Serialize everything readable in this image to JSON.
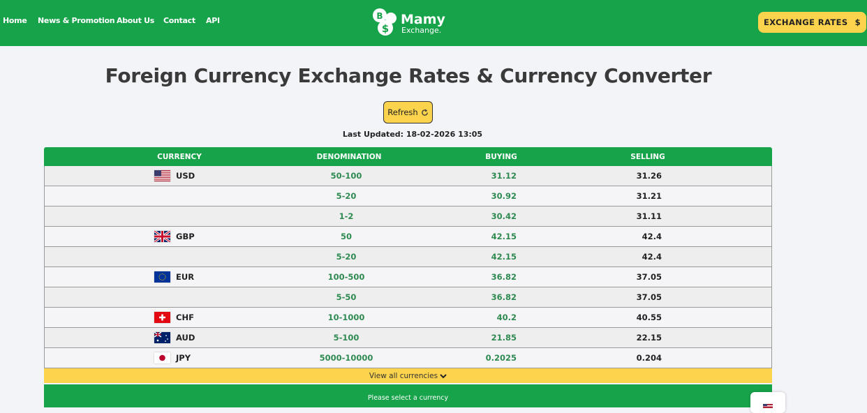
{
  "nav": {
    "items": [
      "Home",
      "News & Promotion",
      "About Us",
      "Contact",
      "API"
    ]
  },
  "logo": {
    "coin_1": "B",
    "coin_2": "$",
    "name": "Mamy",
    "tagline": "Exchange."
  },
  "header_button": {
    "label": "EXCHANGE RATES",
    "icon": "$"
  },
  "title": "Foreign Currency Exchange Rates & Currency Converter",
  "refresh": "Refresh",
  "last_updated": "Last Updated: 18-02-2026 13:05",
  "table": {
    "headers": [
      "CURRENCY",
      "DENOMINATION",
      "BUYING",
      "SELLING"
    ],
    "rows": [
      [
        "USD",
        "50-100",
        "31.12",
        "31.26"
      ],
      [
        null,
        "5-20",
        "30.92",
        "31.21"
      ],
      [
        null,
        "1-2",
        "30.42",
        "31.11"
      ],
      [
        "GBP",
        "50",
        "42.15",
        "42.4"
      ],
      [
        null,
        "5-20",
        "42.15",
        "42.4"
      ],
      [
        "EUR",
        "100-500",
        "36.82",
        "37.05"
      ],
      [
        null,
        "5-50",
        "36.82",
        "37.05"
      ],
      [
        "CHF",
        "10-1000",
        "40.2",
        "40.55"
      ],
      [
        "AUD",
        "5-100",
        "21.85",
        "22.15"
      ],
      [
        "JPY",
        "5000-10000",
        "0.2025",
        "0.204"
      ]
    ],
    "view_all": "View all currencies"
  },
  "converter": {
    "prompt": "Please select a currency"
  }
}
